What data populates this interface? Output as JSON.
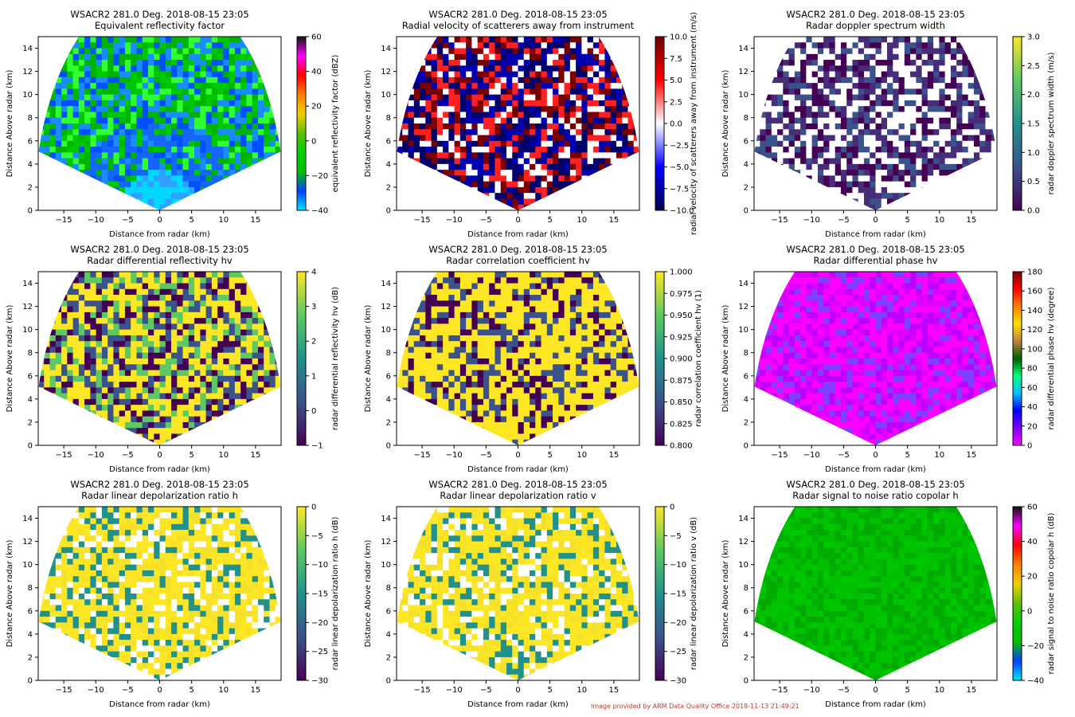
{
  "footer": "Image provided by ARM Data Quality Office 2018-11-13 21:49:21",
  "chart_data": [
    {
      "type": "heatmap",
      "title": "WSACR2 281.0 Deg. 2018-08-15 23:05",
      "subtitle": "Equivalent reflectivity factor",
      "xlabel": "Distance from radar (km)",
      "ylabel": "Distance Above radar  (km)",
      "xlim": [
        -19,
        19
      ],
      "ylim": [
        0,
        15
      ],
      "xticks": [
        -15,
        -10,
        -5,
        0,
        5,
        10,
        15
      ],
      "yticks": [
        0,
        2,
        4,
        6,
        8,
        10,
        12,
        14
      ],
      "colorbar": {
        "label": "equivalent reflectivity factor (dBZ)",
        "min": -40,
        "max": 60,
        "ticks": [
          "60",
          "40",
          "20",
          "0",
          "−20",
          "−40"
        ],
        "colors": [
          "#00e5ff",
          "#0040ff",
          "#00c000",
          "#00d000",
          "#60c000",
          "#f0d000",
          "#ff8000",
          "#ff0000",
          "#ff00ff",
          "#101010"
        ]
      },
      "dominant": [
        "#00c800",
        "#00b400",
        "#1a8cff",
        "#0050ff",
        "#30ff30"
      ]
    },
    {
      "type": "heatmap",
      "title": "WSACR2 281.0 Deg. 2018-08-15 23:05",
      "subtitle": "Radial velocity of scatterers away from instrument",
      "xlabel": "Distance from radar (km)",
      "ylabel": "Distance Above radar  (km)",
      "xlim": [
        -19,
        19
      ],
      "ylim": [
        0,
        15
      ],
      "xticks": [
        -15,
        -10,
        -5,
        0,
        5,
        10,
        15
      ],
      "yticks": [
        0,
        2,
        4,
        6,
        8,
        10,
        12,
        14
      ],
      "colorbar": {
        "label": "radial velocity of scatterers away from instrument (m/s)",
        "min": -10,
        "max": 10,
        "ticks": [
          "10.0",
          "7.5",
          "5.0",
          "2.5",
          "0.0",
          "−2.5",
          "−5.0",
          "−7.5",
          "−10.0"
        ],
        "colors": [
          "#00004a",
          "#0000ff",
          "#ffffff",
          "#ff0000",
          "#6a0000"
        ]
      },
      "dominant": [
        "#7a0000",
        "#ffffff",
        "#0000b0",
        "#ff2020",
        "#00006a"
      ]
    },
    {
      "type": "heatmap",
      "title": "WSACR2 281.0 Deg. 2018-08-15 23:05",
      "subtitle": "Radar doppler spectrum width",
      "xlabel": "Distance from radar (km)",
      "ylabel": "Distance Above radar  (km)",
      "xlim": [
        -19,
        19
      ],
      "ylim": [
        0,
        15
      ],
      "xticks": [
        -15,
        -10,
        -5,
        0,
        5,
        10,
        15
      ],
      "yticks": [
        0,
        2,
        4,
        6,
        8,
        10,
        12,
        14
      ],
      "colorbar": {
        "label": "radar doppler spectrum width (m/s)",
        "min": 0,
        "max": 3,
        "ticks": [
          "3.0",
          "2.5",
          "2.0",
          "1.5",
          "1.0",
          "0.5",
          "0.0"
        ],
        "colors": [
          "#440154",
          "#3b528b",
          "#21918c",
          "#5ec962",
          "#fde725"
        ]
      },
      "dominant": [
        "#440154",
        "#472c7a",
        "#3b528b",
        "#ffffff",
        "#ffffff"
      ]
    },
    {
      "type": "heatmap",
      "title": "WSACR2 281.0 Deg. 2018-08-15 23:05",
      "subtitle": "Radar differential reflectivity hv",
      "xlabel": "Distance from radar (km)",
      "ylabel": "Distance Above radar  (km)",
      "xlim": [
        -19,
        19
      ],
      "ylim": [
        0,
        15
      ],
      "xticks": [
        -15,
        -10,
        -5,
        0,
        5,
        10,
        15
      ],
      "yticks": [
        0,
        2,
        4,
        6,
        8,
        10,
        12,
        14
      ],
      "colorbar": {
        "label": "radar differential reflectivity hv (dB)",
        "min": -1,
        "max": 4,
        "ticks": [
          "4",
          "3",
          "2",
          "1",
          "0",
          "−1"
        ],
        "colors": [
          "#440154",
          "#3b528b",
          "#21918c",
          "#5ec962",
          "#fde725"
        ]
      },
      "dominant": [
        "#fde725",
        "#440154",
        "#fde725",
        "#3b528b",
        "#5ec962"
      ]
    },
    {
      "type": "heatmap",
      "title": "WSACR2 281.0 Deg. 2018-08-15 23:05",
      "subtitle": "Radar correlation coefficient hv",
      "xlabel": "Distance from radar (km)",
      "ylabel": "Distance Above radar  (km)",
      "xlim": [
        -19,
        19
      ],
      "ylim": [
        0,
        15
      ],
      "xticks": [
        -15,
        -10,
        -5,
        0,
        5,
        10,
        15
      ],
      "yticks": [
        0,
        2,
        4,
        6,
        8,
        10,
        12,
        14
      ],
      "colorbar": {
        "label": "radar correlation coefficient hv (1)",
        "min": 0.8,
        "max": 1.0,
        "ticks": [
          "1.000",
          "0.975",
          "0.950",
          "0.925",
          "0.900",
          "0.875",
          "0.850",
          "0.825",
          "0.800"
        ],
        "colors": [
          "#440154",
          "#3b528b",
          "#21918c",
          "#5ec962",
          "#fde725"
        ]
      },
      "dominant": [
        "#fde725",
        "#fde725",
        "#440154",
        "#fde725",
        "#3b528b"
      ]
    },
    {
      "type": "heatmap",
      "title": "WSACR2 281.0 Deg. 2018-08-15 23:05",
      "subtitle": "Radar differential phase hv",
      "xlabel": "Distance from radar (km)",
      "ylabel": "Distance Above radar  (km)",
      "xlim": [
        -19,
        19
      ],
      "ylim": [
        0,
        15
      ],
      "xticks": [
        -15,
        -10,
        -5,
        0,
        5,
        10,
        15
      ],
      "yticks": [
        0,
        2,
        4,
        6,
        8,
        10,
        12,
        14
      ],
      "colorbar": {
        "label": "radar differential phase hv (degree)",
        "min": 0,
        "max": 180,
        "ticks": [
          "180",
          "160",
          "140",
          "120",
          "100",
          "80",
          "60",
          "40",
          "20",
          "0"
        ],
        "colors": [
          "#ff00ff",
          "#8000ff",
          "#0000ff",
          "#00c0ff",
          "#00ff80",
          "#006000",
          "#c08040",
          "#ffe000",
          "#ff8000",
          "#ff0000",
          "#800000"
        ]
      },
      "dominant": [
        "#ff00ff",
        "#e000ff",
        "#c000ff",
        "#8040ff",
        "#ff00ff"
      ]
    },
    {
      "type": "heatmap",
      "title": "WSACR2 281.0 Deg. 2018-08-15 23:05",
      "subtitle": "Radar linear depolarization ratio h",
      "xlabel": "Distance from radar (km)",
      "ylabel": "Distance Above radar  (km)",
      "xlim": [
        -19,
        19
      ],
      "ylim": [
        0,
        15
      ],
      "xticks": [
        -15,
        -10,
        -5,
        0,
        5,
        10,
        15
      ],
      "yticks": [
        0,
        2,
        4,
        6,
        8,
        10,
        12,
        14
      ],
      "colorbar": {
        "label": "radar linear depolarization ratio h (dB)",
        "min": -30,
        "max": 0,
        "ticks": [
          "0",
          "−5",
          "−10",
          "−15",
          "−20",
          "−25",
          "−30"
        ],
        "colors": [
          "#440154",
          "#3b528b",
          "#21918c",
          "#5ec962",
          "#fde725"
        ]
      },
      "dominant": [
        "#fde725",
        "#fde725",
        "#f5e02a",
        "#ffffff",
        "#21918c"
      ]
    },
    {
      "type": "heatmap",
      "title": "WSACR2 281.0 Deg. 2018-08-15 23:05",
      "subtitle": "Radar linear depolarization ratio v",
      "xlabel": "Distance from radar (km)",
      "ylabel": "Distance Above radar  (km)",
      "xlim": [
        -19,
        19
      ],
      "ylim": [
        0,
        15
      ],
      "xticks": [
        -15,
        -10,
        -5,
        0,
        5,
        10,
        15
      ],
      "yticks": [
        0,
        2,
        4,
        6,
        8,
        10,
        12,
        14
      ],
      "colorbar": {
        "label": "radar linear depolarization ratio v (dB)",
        "min": -30,
        "max": 0,
        "ticks": [
          "0",
          "−5",
          "−10",
          "−15",
          "−20",
          "−25",
          "−30"
        ],
        "colors": [
          "#440154",
          "#3b528b",
          "#21918c",
          "#5ec962",
          "#fde725"
        ]
      },
      "dominant": [
        "#fde725",
        "#fde725",
        "#f5e02a",
        "#ffffff",
        "#21918c"
      ]
    },
    {
      "type": "heatmap",
      "title": "WSACR2 281.0 Deg. 2018-08-15 23:05",
      "subtitle": "Radar signal to noise ratio copolar h",
      "xlabel": "Distance from radar (km)",
      "ylabel": "Distance Above radar  (km)",
      "xlim": [
        -19,
        19
      ],
      "ylim": [
        0,
        15
      ],
      "xticks": [
        -15,
        -10,
        -5,
        0,
        5,
        10,
        15
      ],
      "yticks": [
        0,
        2,
        4,
        6,
        8,
        10,
        12,
        14
      ],
      "colorbar": {
        "label": "radar signal to noise ratio copolar h (dB)",
        "min": -40,
        "max": 60,
        "ticks": [
          "60",
          "40",
          "20",
          "0",
          "−20",
          "−40"
        ],
        "colors": [
          "#00e5ff",
          "#0040ff",
          "#00c000",
          "#00d000",
          "#60c000",
          "#f0d000",
          "#ff8000",
          "#ff0000",
          "#ff00ff",
          "#101010"
        ]
      },
      "dominant": [
        "#00c000",
        "#00b000",
        "#00c800",
        "#00a800",
        "#00c000"
      ]
    }
  ]
}
